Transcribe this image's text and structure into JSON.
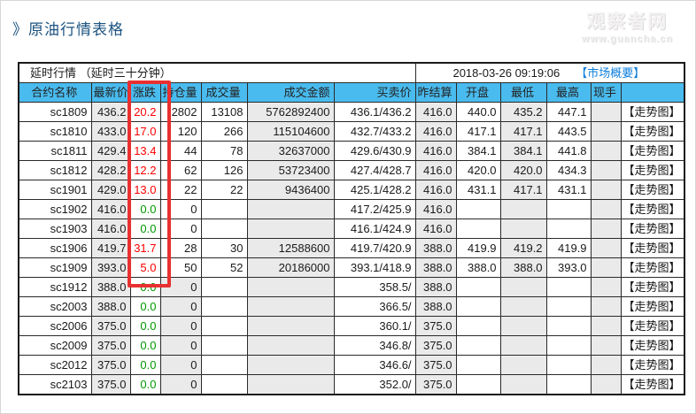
{
  "page": {
    "title": "》原油行情表格",
    "watermark": {
      "line1": "观察者网",
      "line2": "www.guancha.cn"
    }
  },
  "table": {
    "delay_notice": "延时行情 （延时三十分钟）",
    "timestamp": "2018-03-26 09:19:06",
    "summary_link": "【市场概要】",
    "trend_link": "【走势图】",
    "columns": [
      "合约名称",
      "最新价",
      "涨跌",
      "持仓量",
      "成交量",
      "成交金额",
      "买卖价",
      "昨结算",
      "开盘",
      "最低",
      "最高",
      "现手",
      ""
    ],
    "rows": [
      {
        "contract": "sc1809",
        "last": "436.2",
        "change": "20.2",
        "dir": "up",
        "open_interest": "2802",
        "volume": "13108",
        "turnover": "5762892400",
        "bid_ask": "436.1/436.2",
        "prev_settle": "416.0",
        "open": "440.0",
        "low": "435.2",
        "high": "447.1",
        "lot": "",
        "oi_shaded": false
      },
      {
        "contract": "sc1810",
        "last": "433.0",
        "change": "17.0",
        "dir": "up",
        "open_interest": "120",
        "volume": "266",
        "turnover": "115104600",
        "bid_ask": "432.7/433.2",
        "prev_settle": "416.0",
        "open": "417.1",
        "low": "417.1",
        "high": "443.5",
        "lot": "",
        "oi_shaded": false
      },
      {
        "contract": "sc1811",
        "last": "429.4",
        "change": "13.4",
        "dir": "up",
        "open_interest": "44",
        "volume": "78",
        "turnover": "32637000",
        "bid_ask": "429.6/430.9",
        "prev_settle": "416.0",
        "open": "384.1",
        "low": "384.1",
        "high": "441.8",
        "lot": "",
        "oi_shaded": false
      },
      {
        "contract": "sc1812",
        "last": "428.2",
        "change": "12.2",
        "dir": "up",
        "open_interest": "62",
        "volume": "126",
        "turnover": "53723400",
        "bid_ask": "427.4/428.7",
        "prev_settle": "416.0",
        "open": "420.0",
        "low": "420.0",
        "high": "434.3",
        "lot": "",
        "oi_shaded": false
      },
      {
        "contract": "sc1901",
        "last": "429.0",
        "change": "13.0",
        "dir": "up",
        "open_interest": "22",
        "volume": "22",
        "turnover": "9436400",
        "bid_ask": "425.1/428.2",
        "prev_settle": "416.0",
        "open": "431.1",
        "low": "417.1",
        "high": "431.1",
        "lot": "",
        "oi_shaded": false
      },
      {
        "contract": "sc1902",
        "last": "416.0",
        "change": "0.0",
        "dir": "flat",
        "open_interest": "0",
        "volume": "",
        "turnover": "",
        "bid_ask": "417.2/425.9",
        "prev_settle": "416.0",
        "open": "",
        "low": "",
        "high": "",
        "lot": "",
        "oi_shaded": false
      },
      {
        "contract": "sc1903",
        "last": "416.0",
        "change": "0.0",
        "dir": "flat",
        "open_interest": "0",
        "volume": "",
        "turnover": "",
        "bid_ask": "416.1/424.9",
        "prev_settle": "416.0",
        "open": "",
        "low": "",
        "high": "",
        "lot": "",
        "oi_shaded": false
      },
      {
        "contract": "sc1906",
        "last": "419.7",
        "change": "31.7",
        "dir": "up",
        "open_interest": "28",
        "volume": "30",
        "turnover": "12588600",
        "bid_ask": "419.7/420.9",
        "prev_settle": "388.0",
        "open": "419.9",
        "low": "419.2",
        "high": "419.9",
        "lot": "",
        "oi_shaded": false
      },
      {
        "contract": "sc1909",
        "last": "393.0",
        "change": "5.0",
        "dir": "up",
        "open_interest": "50",
        "volume": "52",
        "turnover": "20186000",
        "bid_ask": "393.1/418.9",
        "prev_settle": "388.0",
        "open": "388.0",
        "low": "388.0",
        "high": "393.0",
        "lot": "",
        "oi_shaded": false
      },
      {
        "contract": "sc1912",
        "last": "388.0",
        "change": "0.0",
        "dir": "flat",
        "open_interest": "0",
        "volume": "",
        "turnover": "",
        "bid_ask": "358.5/",
        "prev_settle": "388.0",
        "open": "",
        "low": "",
        "high": "",
        "lot": "",
        "oi_shaded": true
      },
      {
        "contract": "sc2003",
        "last": "388.0",
        "change": "0.0",
        "dir": "flat",
        "open_interest": "0",
        "volume": "",
        "turnover": "",
        "bid_ask": "366.5/",
        "prev_settle": "388.0",
        "open": "",
        "low": "",
        "high": "",
        "lot": "",
        "oi_shaded": true
      },
      {
        "contract": "sc2006",
        "last": "375.0",
        "change": "0.0",
        "dir": "flat",
        "open_interest": "0",
        "volume": "",
        "turnover": "",
        "bid_ask": "360.1/",
        "prev_settle": "375.0",
        "open": "",
        "low": "",
        "high": "",
        "lot": "",
        "oi_shaded": true
      },
      {
        "contract": "sc2009",
        "last": "375.0",
        "change": "0.0",
        "dir": "flat",
        "open_interest": "0",
        "volume": "",
        "turnover": "",
        "bid_ask": "346.8/",
        "prev_settle": "375.0",
        "open": "",
        "low": "",
        "high": "",
        "lot": "",
        "oi_shaded": true
      },
      {
        "contract": "sc2012",
        "last": "375.0",
        "change": "0.0",
        "dir": "flat",
        "open_interest": "0",
        "volume": "",
        "turnover": "",
        "bid_ask": "346.6/",
        "prev_settle": "375.0",
        "open": "",
        "low": "",
        "high": "",
        "lot": "",
        "oi_shaded": true
      },
      {
        "contract": "sc2103",
        "last": "375.0",
        "change": "0.0",
        "dir": "flat",
        "open_interest": "0",
        "volume": "",
        "turnover": "",
        "bid_ask": "352.0/",
        "prev_settle": "375.0",
        "open": "",
        "low": "",
        "high": "",
        "lot": "",
        "oi_shaded": true
      }
    ]
  },
  "colors": {
    "header_blue": "#49bbee",
    "shade_gray": "#eaeaea",
    "up_red": "#fe0000",
    "flat_green": "#009900",
    "link_blue": "#0e7fdc",
    "annotation_red": "#e93030"
  }
}
